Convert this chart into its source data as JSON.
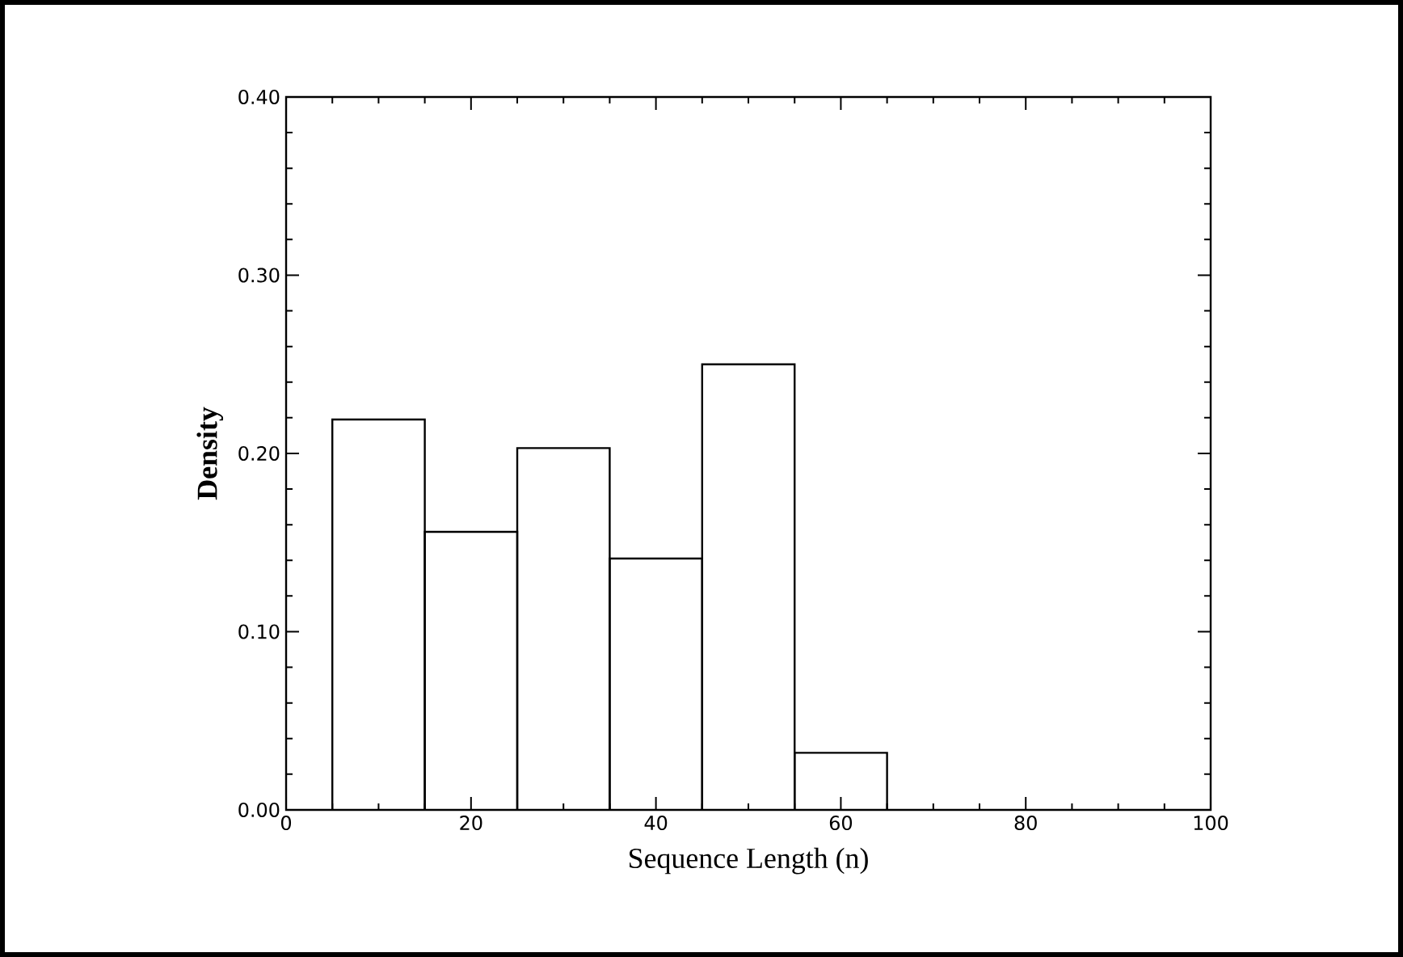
{
  "chart_data": {
    "type": "histogram",
    "xlabel": "Sequence Length (n)",
    "ylabel": "Density",
    "bins": [
      5,
      15,
      25,
      35,
      45,
      55,
      65
    ],
    "values": [
      0.219,
      0.156,
      0.203,
      0.141,
      0.25,
      0.032
    ],
    "color": "#000000",
    "xlim": [
      0,
      100
    ],
    "ylim": [
      0,
      0.4
    ],
    "xticks": [
      0,
      20,
      40,
      60,
      80,
      100
    ],
    "yticks": [
      {
        "value": 0,
        "label": "0.00"
      },
      {
        "value": 0.1,
        "label": "0.10"
      },
      {
        "value": 0.2,
        "label": "0.20"
      },
      {
        "value": 0.3,
        "label": "0.30"
      },
      {
        "value": 0.4,
        "label": "0.40"
      }
    ]
  }
}
